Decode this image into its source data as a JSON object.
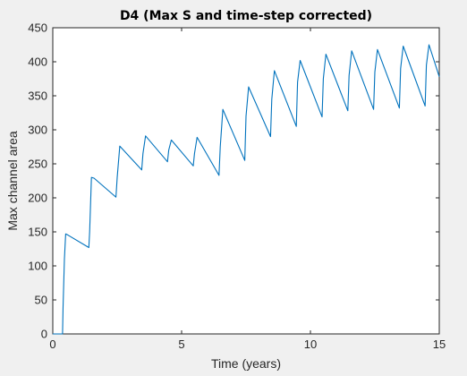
{
  "chart_data": {
    "type": "line",
    "title": "D4 (Max S and time-step corrected)",
    "xlabel": "Time (years)",
    "ylabel": "Max channel area",
    "xlim": [
      0,
      15
    ],
    "ylim": [
      0,
      450
    ],
    "xticks": [
      0,
      5,
      10,
      15
    ],
    "yticks": [
      0,
      50,
      100,
      150,
      200,
      250,
      300,
      350,
      400,
      450
    ],
    "grid": false,
    "legend": "none",
    "colors": {
      "series": "#0072bd",
      "background": "#f0f0f0",
      "plot_area": "#ffffff",
      "axis": "#262626"
    },
    "series": [
      {
        "x": [
          0,
          0.38,
          0.4,
          0.45,
          0.5,
          0.6,
          1.4,
          1.43,
          1.5,
          1.6,
          2.45,
          2.5,
          2.6,
          3.45,
          3.5,
          3.6,
          4.45,
          4.5,
          4.6,
          5.45,
          5.5,
          5.6,
          6.45,
          6.5,
          6.6,
          7.45,
          7.5,
          7.6,
          8.45,
          8.5,
          8.6,
          9.45,
          9.5,
          9.6,
          10.45,
          10.5,
          10.6,
          11.45,
          11.5,
          11.6,
          12.45,
          12.5,
          12.6,
          13.45,
          13.5,
          13.6,
          14.45,
          14.5,
          14.6,
          15
        ],
        "y": [
          0,
          0,
          40,
          110,
          147,
          145,
          127,
          150,
          230,
          229,
          201,
          230,
          276,
          241,
          265,
          291,
          253,
          270,
          285,
          247,
          265,
          289,
          233,
          275,
          330,
          255,
          320,
          363,
          290,
          345,
          387,
          305,
          370,
          402,
          319,
          375,
          411,
          328,
          380,
          416,
          330,
          385,
          418,
          332,
          390,
          423,
          335,
          395,
          425,
          378
        ]
      }
    ]
  }
}
